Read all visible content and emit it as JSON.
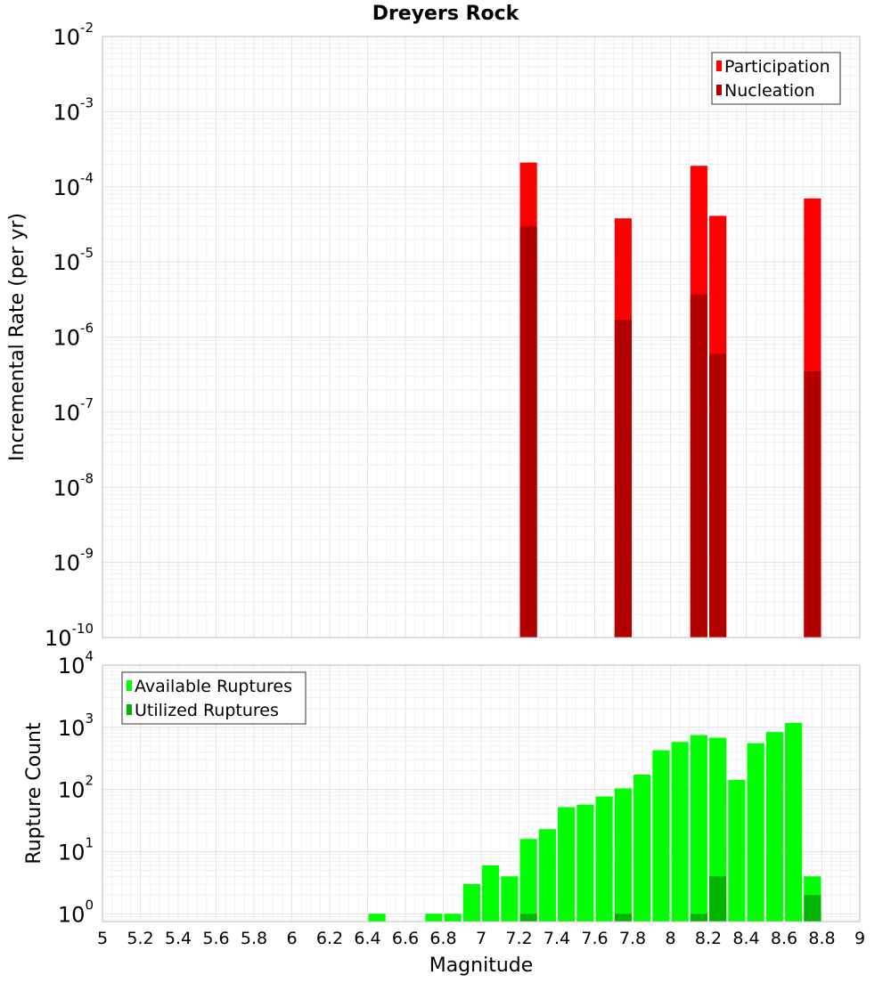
{
  "chart_data": [
    {
      "type": "bar",
      "title": "Dreyers Rock",
      "ylabel": "Incremental Rate (per yr)",
      "xlabel": "",
      "x_range": [
        5,
        9
      ],
      "y_scale": "log",
      "ylim": [
        1e-10,
        0.01
      ],
      "y_tick_exponents": [
        -2,
        -3,
        -4,
        -5,
        -6,
        -7,
        -8,
        -9,
        -10
      ],
      "grid": true,
      "legend_position": "top-right",
      "series": [
        {
          "name": "Participation",
          "color": "#ff0000",
          "points": [
            {
              "x": 7.25,
              "y": 0.00021
            },
            {
              "x": 7.75,
              "y": 3.8e-05
            },
            {
              "x": 8.15,
              "y": 0.00019
            },
            {
              "x": 8.25,
              "y": 4.1e-05
            },
            {
              "x": 8.75,
              "y": 7e-05
            }
          ]
        },
        {
          "name": "Nucleation",
          "color": "#b20000",
          "points": [
            {
              "x": 7.25,
              "y": 3e-05
            },
            {
              "x": 7.75,
              "y": 1.7e-06
            },
            {
              "x": 8.15,
              "y": 3.7e-06
            },
            {
              "x": 8.25,
              "y": 6e-07
            },
            {
              "x": 8.75,
              "y": 3.5e-07
            }
          ]
        }
      ]
    },
    {
      "type": "bar",
      "title": "",
      "ylabel": "Rupture Count",
      "xlabel": "Magnitude",
      "x_range": [
        5,
        9
      ],
      "x_ticks": [
        "5",
        "5.2",
        "5.4",
        "5.6",
        "5.8",
        "6",
        "6.2",
        "6.4",
        "6.6",
        "6.8",
        "7",
        "7.2",
        "7.4",
        "7.6",
        "7.8",
        "8",
        "8.2",
        "8.4",
        "8.6",
        "8.8",
        "9"
      ],
      "y_scale": "log",
      "ylim": [
        0.75,
        10000
      ],
      "y_tick_exponents": [
        4,
        3,
        2,
        1,
        0
      ],
      "grid": true,
      "legend_position": "top-left",
      "series": [
        {
          "name": "Available Ruptures",
          "color": "#00ff00",
          "points": [
            {
              "x": 6.45,
              "y": 1
            },
            {
              "x": 6.75,
              "y": 1
            },
            {
              "x": 6.85,
              "y": 1
            },
            {
              "x": 6.95,
              "y": 3
            },
            {
              "x": 7.05,
              "y": 6
            },
            {
              "x": 7.15,
              "y": 4
            },
            {
              "x": 7.25,
              "y": 16
            },
            {
              "x": 7.35,
              "y": 23
            },
            {
              "x": 7.45,
              "y": 52
            },
            {
              "x": 7.55,
              "y": 57
            },
            {
              "x": 7.65,
              "y": 77
            },
            {
              "x": 7.75,
              "y": 104
            },
            {
              "x": 7.85,
              "y": 173
            },
            {
              "x": 7.95,
              "y": 427
            },
            {
              "x": 8.05,
              "y": 580
            },
            {
              "x": 8.15,
              "y": 750
            },
            {
              "x": 8.25,
              "y": 680
            },
            {
              "x": 8.35,
              "y": 143
            },
            {
              "x": 8.45,
              "y": 555
            },
            {
              "x": 8.55,
              "y": 840
            },
            {
              "x": 8.65,
              "y": 1180
            },
            {
              "x": 8.75,
              "y": 4
            }
          ]
        },
        {
          "name": "Utilized Ruptures",
          "color": "#00b400",
          "points": [
            {
              "x": 7.25,
              "y": 1
            },
            {
              "x": 7.75,
              "y": 1
            },
            {
              "x": 8.15,
              "y": 1
            },
            {
              "x": 8.25,
              "y": 4
            },
            {
              "x": 8.75,
              "y": 2
            }
          ]
        }
      ]
    }
  ]
}
